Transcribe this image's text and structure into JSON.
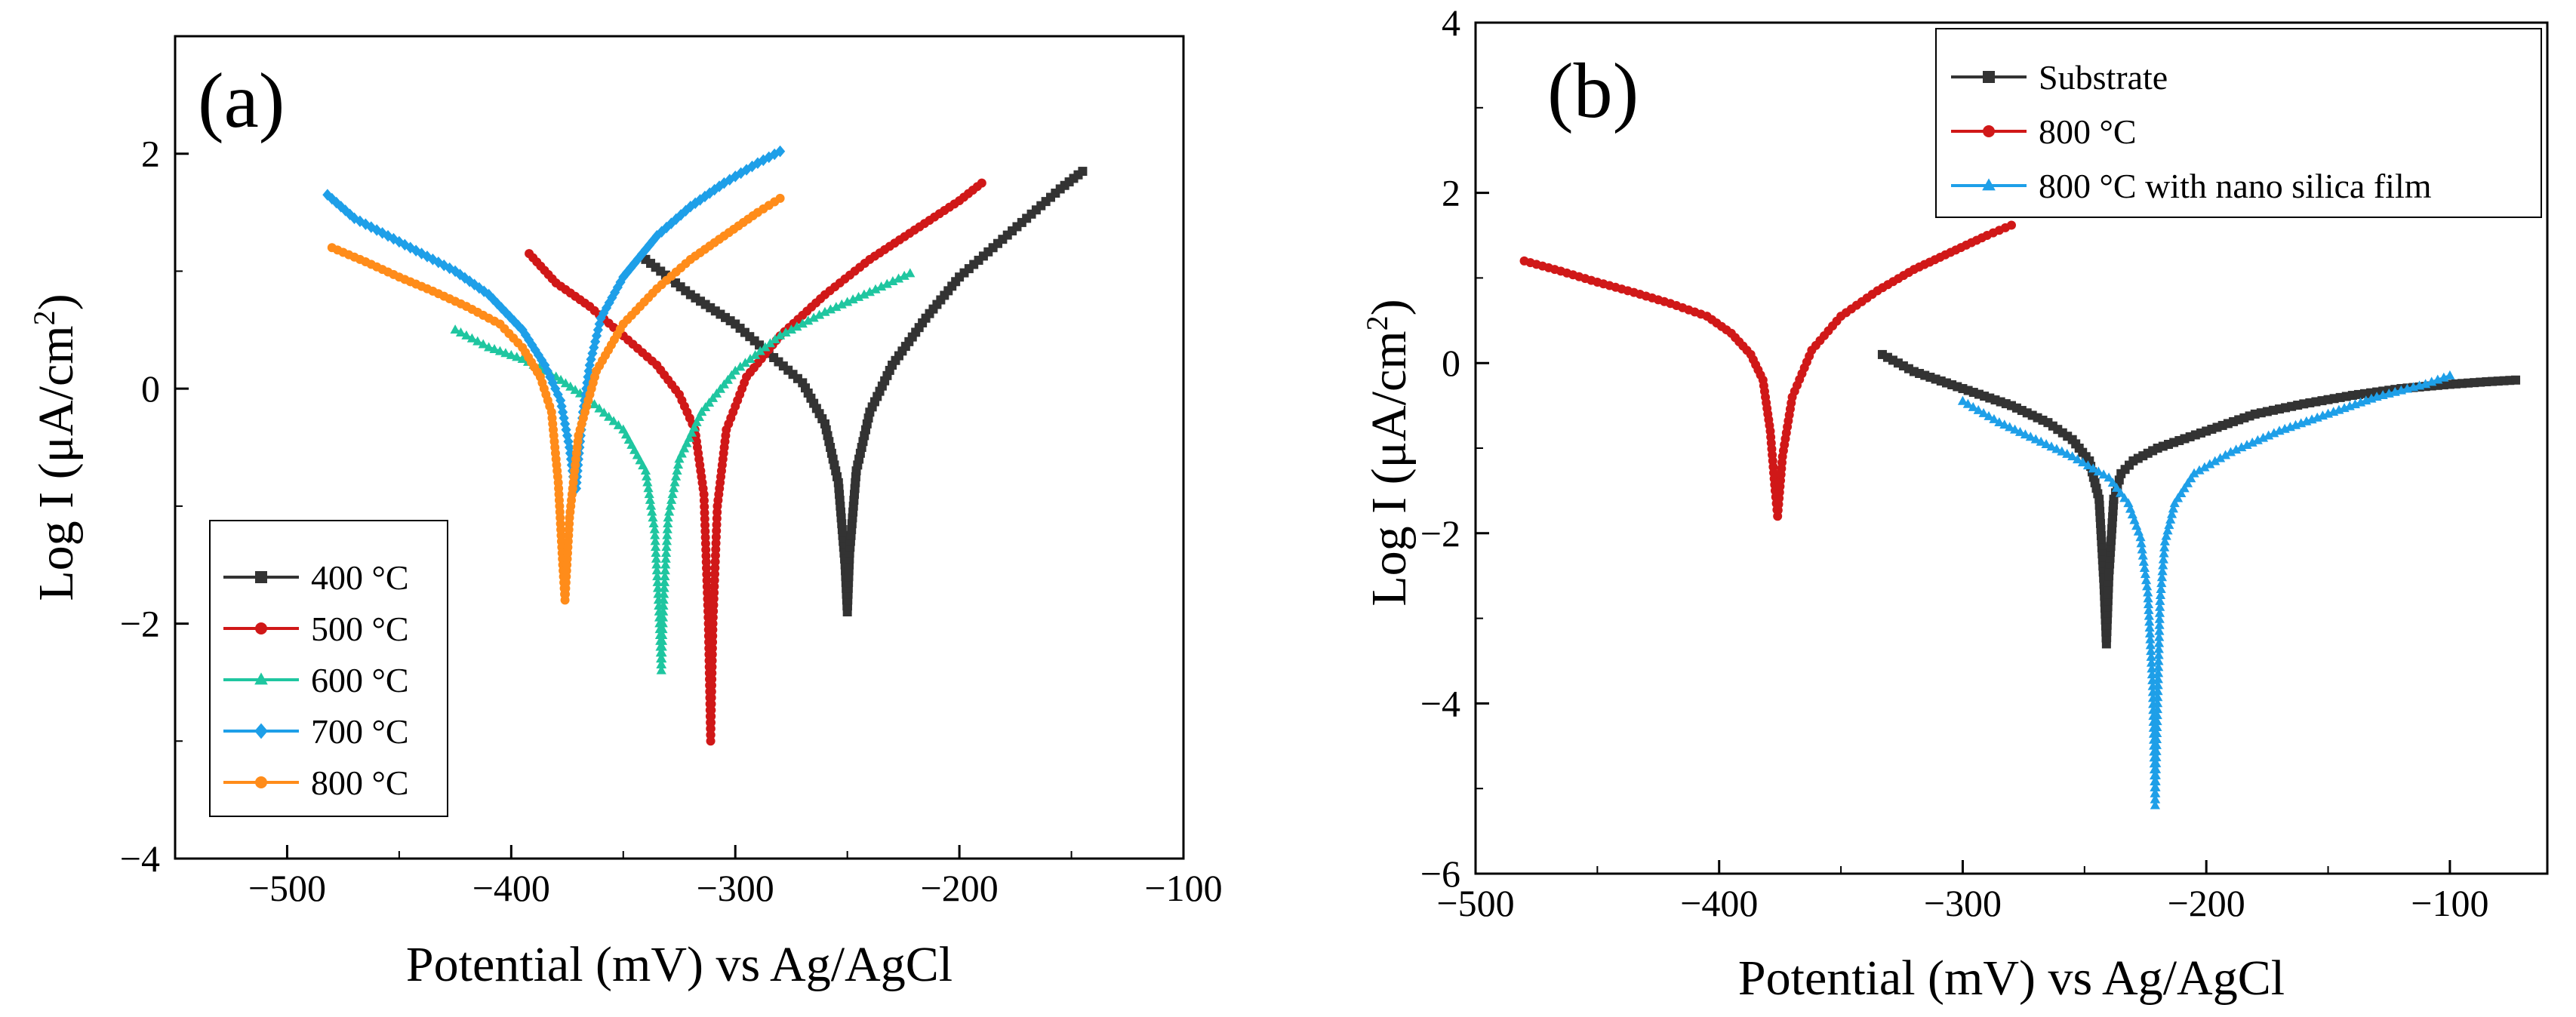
{
  "chart_data": [
    {
      "type": "line",
      "panel_label": "(a)",
      "xlabel": "Potential (mV) vs Ag/AgCl",
      "ylabel_main": "Log I (μA/cm",
      "ylabel_sup": "2",
      "ylabel_end": ")",
      "xlim": [
        -550,
        -100
      ],
      "ylim": [
        -4,
        3
      ],
      "xticks": [
        -500,
        -400,
        -300,
        -200,
        -100
      ],
      "xtick_labels": [
        "−500",
        "−400",
        "−300",
        "−200",
        "−100"
      ],
      "yticks": [
        -4,
        -2,
        0,
        2
      ],
      "ytick_labels": [
        "−4",
        "−2",
        "0",
        "2"
      ],
      "legend_position": "bottom-left",
      "series": [
        {
          "name": "400 °C",
          "color": "#333333",
          "marker": "square",
          "x": [
            -340,
            -320,
            -300,
            -285,
            -270,
            -260,
            -254,
            -251,
            -250,
            -249,
            -246,
            -240,
            -230,
            -215,
            -200,
            -185,
            -170,
            -155,
            -145
          ],
          "y": [
            1.1,
            0.8,
            0.55,
            0.3,
            0.05,
            -0.3,
            -0.8,
            -1.5,
            -1.9,
            -1.4,
            -0.7,
            -0.2,
            0.2,
            0.6,
            0.95,
            1.2,
            1.45,
            1.7,
            1.85
          ]
        },
        {
          "name": "500 °C",
          "color": "#d01818",
          "marker": "circle",
          "x": [
            -392,
            -380,
            -365,
            -350,
            -335,
            -325,
            -318,
            -314,
            -312,
            -311,
            -310,
            -308,
            -304,
            -295,
            -280,
            -260,
            -240,
            -220,
            -200,
            -190
          ],
          "y": [
            1.15,
            0.9,
            0.7,
            0.45,
            0.2,
            -0.05,
            -0.35,
            -0.9,
            -2.0,
            -3.0,
            -2.0,
            -1.0,
            -0.35,
            0.1,
            0.45,
            0.8,
            1.1,
            1.35,
            1.6,
            1.75
          ]
        },
        {
          "name": "600 °C",
          "color": "#1fc6a0",
          "marker": "triangle",
          "x": [
            -425,
            -410,
            -395,
            -380,
            -365,
            -350,
            -340,
            -336,
            -334,
            -333,
            -332,
            -330,
            -325,
            -315,
            -300,
            -280,
            -260,
            -240,
            -222
          ],
          "y": [
            0.5,
            0.35,
            0.25,
            0.1,
            -0.1,
            -0.35,
            -0.7,
            -1.2,
            -1.9,
            -2.4,
            -1.8,
            -1.1,
            -0.6,
            -0.2,
            0.15,
            0.45,
            0.65,
            0.82,
            0.98
          ]
        },
        {
          "name": "700 °C",
          "color": "#1e9fe8",
          "marker": "diamond",
          "x": [
            -482,
            -470,
            -455,
            -440,
            -425,
            -410,
            -395,
            -385,
            -378,
            -374,
            -372,
            -371,
            -370,
            -368,
            -365,
            -360,
            -350,
            -335,
            -320,
            -305,
            -290,
            -280
          ],
          "y": [
            1.65,
            1.45,
            1.3,
            1.15,
            1.0,
            0.8,
            0.5,
            0.2,
            -0.1,
            -0.5,
            -0.8,
            -0.85,
            -0.6,
            -0.2,
            0.2,
            0.6,
            0.95,
            1.3,
            1.55,
            1.75,
            1.92,
            2.02
          ]
        },
        {
          "name": "800 °C",
          "color": "#ff8c1a",
          "marker": "circle",
          "x": [
            -480,
            -465,
            -450,
            -435,
            -420,
            -405,
            -395,
            -387,
            -382,
            -379,
            -377,
            -376,
            -374,
            -370,
            -362,
            -350,
            -335,
            -320,
            -305,
            -290,
            -280
          ],
          "y": [
            1.2,
            1.08,
            0.95,
            0.83,
            0.7,
            0.55,
            0.35,
            0.1,
            -0.2,
            -0.8,
            -1.5,
            -1.8,
            -1.1,
            -0.4,
            0.15,
            0.55,
            0.85,
            1.1,
            1.3,
            1.5,
            1.62
          ]
        }
      ]
    },
    {
      "type": "line",
      "panel_label": "(b)",
      "xlabel": "Potential (mV) vs Ag/AgCl",
      "ylabel_main": "Log I (μA/cm",
      "ylabel_sup": "2",
      "ylabel_end": ")",
      "xlim": [
        -500,
        -60
      ],
      "ylim": [
        -6,
        4
      ],
      "xticks": [
        -500,
        -400,
        -300,
        -200,
        -100
      ],
      "xtick_labels": [
        "−500",
        "−400",
        "−300",
        "−200",
        "−100"
      ],
      "yticks": [
        -6,
        -4,
        -2,
        0,
        2,
        4
      ],
      "ytick_labels": [
        "−6",
        "−4",
        "−2",
        "0",
        "2",
        "4"
      ],
      "legend_position": "top-right",
      "series": [
        {
          "name": "Substrate",
          "color": "#333333",
          "marker": "square",
          "x": [
            -333,
            -320,
            -300,
            -280,
            -265,
            -255,
            -248,
            -244,
            -242,
            -241,
            -240,
            -238,
            -235,
            -230,
            -220,
            -200,
            -180,
            -160,
            -140,
            -120,
            -100,
            -85,
            -73
          ],
          "y": [
            0.1,
            -0.1,
            -0.3,
            -0.5,
            -0.7,
            -0.9,
            -1.15,
            -1.6,
            -2.6,
            -3.3,
            -2.5,
            -1.6,
            -1.3,
            -1.15,
            -1.0,
            -0.8,
            -0.6,
            -0.48,
            -0.38,
            -0.3,
            -0.25,
            -0.22,
            -0.2
          ]
        },
        {
          "name": "800 °C",
          "color": "#d01818",
          "marker": "circle",
          "x": [
            -480,
            -465,
            -450,
            -435,
            -420,
            -405,
            -395,
            -387,
            -382,
            -379,
            -377,
            -376,
            -374,
            -370,
            -362,
            -350,
            -335,
            -320,
            -305,
            -290,
            -280
          ],
          "y": [
            1.2,
            1.08,
            0.95,
            0.83,
            0.7,
            0.55,
            0.35,
            0.1,
            -0.2,
            -0.8,
            -1.5,
            -1.8,
            -1.1,
            -0.4,
            0.15,
            0.55,
            0.85,
            1.1,
            1.3,
            1.5,
            1.62
          ]
        },
        {
          "name": "800 °C with nano silica film",
          "color": "#1e9fe8",
          "marker": "triangle",
          "x": [
            -300,
            -285,
            -270,
            -255,
            -240,
            -232,
            -227,
            -224,
            -222,
            -221,
            -220,
            -219,
            -217,
            -213,
            -205,
            -190,
            -170,
            -150,
            -130,
            -110,
            -100
          ],
          "y": [
            -0.45,
            -0.7,
            -0.9,
            -1.1,
            -1.35,
            -1.65,
            -2.05,
            -2.7,
            -3.8,
            -5.2,
            -4.0,
            -2.8,
            -2.1,
            -1.65,
            -1.3,
            -1.05,
            -0.8,
            -0.6,
            -0.4,
            -0.25,
            -0.15
          ]
        }
      ]
    }
  ]
}
